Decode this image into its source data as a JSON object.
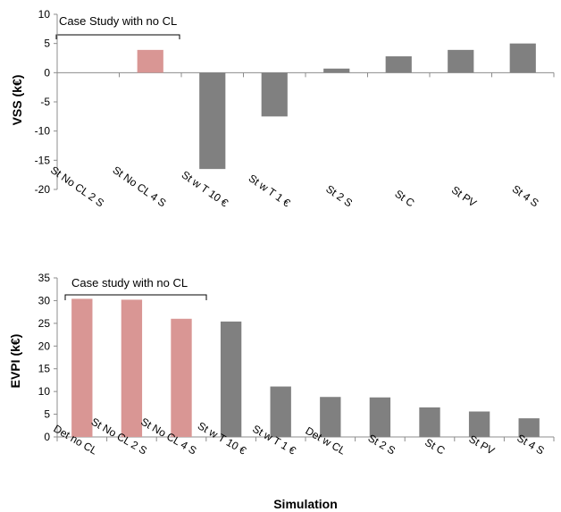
{
  "chart_data": [
    {
      "type": "bar",
      "ylabel": "VSS (k€)",
      "xlabel": "",
      "ylim": [
        -20,
        10
      ],
      "yticks": [
        10,
        5,
        0,
        -5,
        -10,
        -15,
        -20
      ],
      "annotation": "Case Study with no CL",
      "categories": [
        "St No CL 2 S",
        "St No CL 4 S",
        "St w T 10 €",
        "St w T 1 €",
        "St 2 S",
        "St C",
        "St PV",
        "St 4 S"
      ],
      "values": [
        0,
        3.9,
        -16.5,
        -7.5,
        0.7,
        2.8,
        3.9,
        5.0
      ],
      "bar_colors": [
        "#d99694",
        "#d99694",
        "#808080",
        "#808080",
        "#808080",
        "#808080",
        "#808080",
        "#808080"
      ]
    },
    {
      "type": "bar",
      "ylabel": "EVPI (k€)",
      "xlabel": "Simulation",
      "ylim": [
        0,
        35
      ],
      "yticks": [
        35,
        30,
        25,
        20,
        15,
        10,
        5,
        0
      ],
      "annotation": "Case study with no CL",
      "categories": [
        "Det no CL",
        "St No CL 2 S",
        "St No CL 4 S",
        "St w T 10 €",
        "St w T 1 €",
        "Det w CL",
        "St 2 S",
        "St C",
        "St PV",
        "St 4 S"
      ],
      "values": [
        30.4,
        30.2,
        26.0,
        25.4,
        11.1,
        8.8,
        8.7,
        6.5,
        5.6,
        4.1
      ],
      "bar_colors": [
        "#d99694",
        "#d99694",
        "#d99694",
        "#808080",
        "#808080",
        "#808080",
        "#808080",
        "#808080",
        "#808080",
        "#808080"
      ]
    }
  ]
}
